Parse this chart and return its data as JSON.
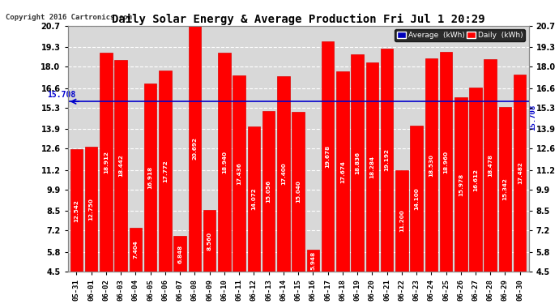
{
  "title": "Daily Solar Energy & Average Production Fri Jul 1 20:29",
  "copyright": "Copyright 2016 Cartronics.com",
  "average": 15.708,
  "average_label": "15.708",
  "categories": [
    "05-31",
    "06-01",
    "06-02",
    "06-03",
    "06-04",
    "06-05",
    "06-06",
    "06-07",
    "06-08",
    "06-09",
    "06-10",
    "06-11",
    "06-12",
    "06-13",
    "06-14",
    "06-15",
    "06-16",
    "06-17",
    "06-18",
    "06-19",
    "06-20",
    "06-21",
    "06-22",
    "06-23",
    "06-24",
    "06-25",
    "06-26",
    "06-27",
    "06-28",
    "06-29",
    "06-30"
  ],
  "values": [
    12.542,
    12.75,
    18.912,
    18.442,
    7.404,
    16.918,
    17.772,
    6.848,
    20.692,
    8.56,
    18.94,
    17.436,
    14.072,
    15.056,
    17.4,
    15.04,
    5.948,
    19.678,
    17.674,
    18.836,
    18.284,
    19.192,
    11.2,
    14.1,
    18.53,
    18.96,
    15.978,
    16.612,
    18.478,
    15.342,
    17.482
  ],
  "bar_color": "#ff0000",
  "bar_edge_color": "#dd0000",
  "avg_line_color": "#0000cc",
  "background_color": "#ffffff",
  "plot_bg_color": "#d8d8d8",
  "grid_color": "#ffffff",
  "title_color": "#000000",
  "ylim_min": 4.5,
  "ylim_max": 20.7,
  "yticks": [
    4.5,
    5.8,
    7.2,
    8.5,
    9.9,
    11.2,
    12.6,
    13.9,
    15.3,
    16.6,
    18.0,
    19.3,
    20.7
  ],
  "legend_avg_color": "#0000bb",
  "legend_daily_color": "#ff0000",
  "legend_avg_text": "Average  (kWh)",
  "legend_daily_text": "Daily  (kWh)"
}
